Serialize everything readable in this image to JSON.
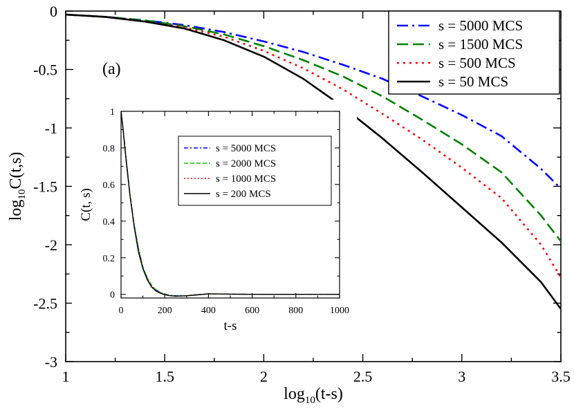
{
  "chart_data": [
    {
      "type": "line",
      "id": "main",
      "panel_label": "(a)",
      "xlabel": {
        "base": "log",
        "sub": "10",
        "rest": "(t-s)"
      },
      "ylabel": {
        "base": "log",
        "sub": "10",
        "rest": "C(t,s)"
      },
      "xlim": [
        1,
        3.5
      ],
      "ylim": [
        -3,
        0
      ],
      "xticks": [
        1,
        1.5,
        2,
        2.5,
        3,
        3.5
      ],
      "xtick_labels": [
        "1",
        "1.5",
        "2",
        "2.5",
        "3",
        "3.5"
      ],
      "yticks": [
        0,
        -0.5,
        -1,
        -1.5,
        -2,
        -2.5,
        -3
      ],
      "ytick_labels": [
        "0",
        "-0.5",
        "-1",
        "-1.5",
        "-2",
        "-2.5",
        "-3"
      ],
      "legend_position": "top-right",
      "series": [
        {
          "name": "s = 5000 MCS",
          "color": "#0000ff",
          "style": "dashdot",
          "x": [
            1.0,
            1.2,
            1.4,
            1.6,
            1.8,
            2.0,
            2.2,
            2.4,
            2.6,
            2.8,
            3.0,
            3.2,
            3.4,
            3.5
          ],
          "y": [
            -0.03,
            -0.05,
            -0.08,
            -0.12,
            -0.18,
            -0.26,
            -0.35,
            -0.46,
            -0.58,
            -0.73,
            -0.89,
            -1.07,
            -1.35,
            -1.52
          ]
        },
        {
          "name": "s = 1500 MCS",
          "color": "#008000",
          "style": "dashed",
          "x": [
            1.0,
            1.2,
            1.4,
            1.6,
            1.8,
            2.0,
            2.2,
            2.4,
            2.6,
            2.8,
            3.0,
            3.2,
            3.4,
            3.5
          ],
          "y": [
            -0.03,
            -0.05,
            -0.08,
            -0.13,
            -0.2,
            -0.3,
            -0.42,
            -0.56,
            -0.73,
            -0.93,
            -1.14,
            -1.38,
            -1.75,
            -1.97
          ]
        },
        {
          "name": "s = 500 MCS",
          "color": "#ff0000",
          "style": "dotted",
          "x": [
            1.0,
            1.2,
            1.4,
            1.6,
            1.8,
            2.0,
            2.2,
            2.4,
            2.6,
            2.8,
            3.0,
            3.2,
            3.4,
            3.5
          ],
          "y": [
            -0.03,
            -0.05,
            -0.09,
            -0.14,
            -0.22,
            -0.34,
            -0.49,
            -0.67,
            -0.88,
            -1.1,
            -1.34,
            -1.6,
            -2.0,
            -2.28
          ]
        },
        {
          "name": "s = 50 MCS",
          "color": "#000000",
          "style": "solid",
          "x": [
            1.0,
            1.2,
            1.4,
            1.6,
            1.8,
            2.0,
            2.2,
            2.4,
            2.6,
            2.8,
            3.0,
            3.2,
            3.4,
            3.5
          ],
          "y": [
            -0.03,
            -0.05,
            -0.09,
            -0.15,
            -0.25,
            -0.39,
            -0.58,
            -0.82,
            -1.09,
            -1.38,
            -1.68,
            -1.98,
            -2.32,
            -2.55
          ]
        }
      ]
    },
    {
      "type": "line",
      "id": "inset",
      "xlabel": "t-s",
      "ylabel": "C(t, s)",
      "xlim": [
        0,
        1000
      ],
      "ylim": [
        -0.02,
        1.0
      ],
      "xticks": [
        0,
        200,
        400,
        600,
        800,
        1000
      ],
      "xtick_labels": [
        "0",
        "200",
        "400",
        "600",
        "800",
        "1000"
      ],
      "yticks": [
        0,
        0.2,
        0.4,
        0.6,
        0.8,
        1
      ],
      "ytick_labels": [
        "0",
        "0.2",
        "0.4",
        "0.6",
        "0.8",
        "1"
      ],
      "legend_position": "top-right",
      "series": [
        {
          "name": "s = 5000 MCS",
          "color": "#0000ff",
          "style": "dashdot",
          "x": [
            0,
            10,
            20,
            40,
            60,
            80,
            100,
            120,
            140,
            160,
            180,
            200,
            220,
            250,
            300,
            350,
            400,
            450,
            500,
            600,
            700,
            800,
            900,
            1000
          ],
          "y": [
            1.0,
            0.9,
            0.78,
            0.56,
            0.38,
            0.25,
            0.15,
            0.09,
            0.05,
            0.025,
            0.01,
            0.002,
            -0.004,
            -0.008,
            -0.007,
            -0.002,
            0.002,
            0.002,
            0.001,
            0.0,
            0.0,
            0.0,
            0.0,
            0.0
          ]
        },
        {
          "name": "s = 2000 MCS",
          "color": "#00cc00",
          "style": "dashed",
          "x": [
            0,
            10,
            20,
            40,
            60,
            80,
            100,
            120,
            140,
            160,
            180,
            200,
            220,
            250,
            300,
            350,
            400,
            450,
            500,
            600,
            700,
            800,
            900,
            1000
          ],
          "y": [
            1.0,
            0.9,
            0.78,
            0.56,
            0.38,
            0.25,
            0.15,
            0.09,
            0.05,
            0.025,
            0.01,
            0.002,
            -0.005,
            -0.009,
            -0.007,
            -0.002,
            0.002,
            0.002,
            0.001,
            0.0,
            0.0,
            0.0,
            0.0,
            0.0
          ]
        },
        {
          "name": "s = 1000 MCS",
          "color": "#ff0000",
          "style": "dotted",
          "x": [
            0,
            10,
            20,
            40,
            60,
            80,
            100,
            120,
            140,
            160,
            180,
            200,
            220,
            250,
            300,
            350,
            400,
            450,
            500,
            600,
            700,
            800,
            900,
            1000
          ],
          "y": [
            1.0,
            0.9,
            0.77,
            0.55,
            0.37,
            0.24,
            0.14,
            0.085,
            0.045,
            0.02,
            0.008,
            0.0,
            -0.006,
            -0.01,
            -0.008,
            -0.002,
            0.002,
            0.002,
            0.001,
            0.0,
            0.0,
            0.0,
            0.0,
            0.0
          ]
        },
        {
          "name": "s = 200 MCS",
          "color": "#000000",
          "style": "solid",
          "x": [
            0,
            10,
            20,
            40,
            60,
            80,
            100,
            120,
            140,
            160,
            180,
            200,
            220,
            250,
            300,
            350,
            400,
            450,
            500,
            600,
            700,
            800,
            900,
            1000
          ],
          "y": [
            1.0,
            0.89,
            0.77,
            0.55,
            0.37,
            0.23,
            0.14,
            0.08,
            0.04,
            0.018,
            0.006,
            -0.002,
            -0.007,
            -0.01,
            -0.008,
            -0.003,
            0.003,
            0.002,
            0.001,
            0.0,
            0.0,
            0.0,
            0.0,
            0.0
          ]
        }
      ]
    }
  ]
}
